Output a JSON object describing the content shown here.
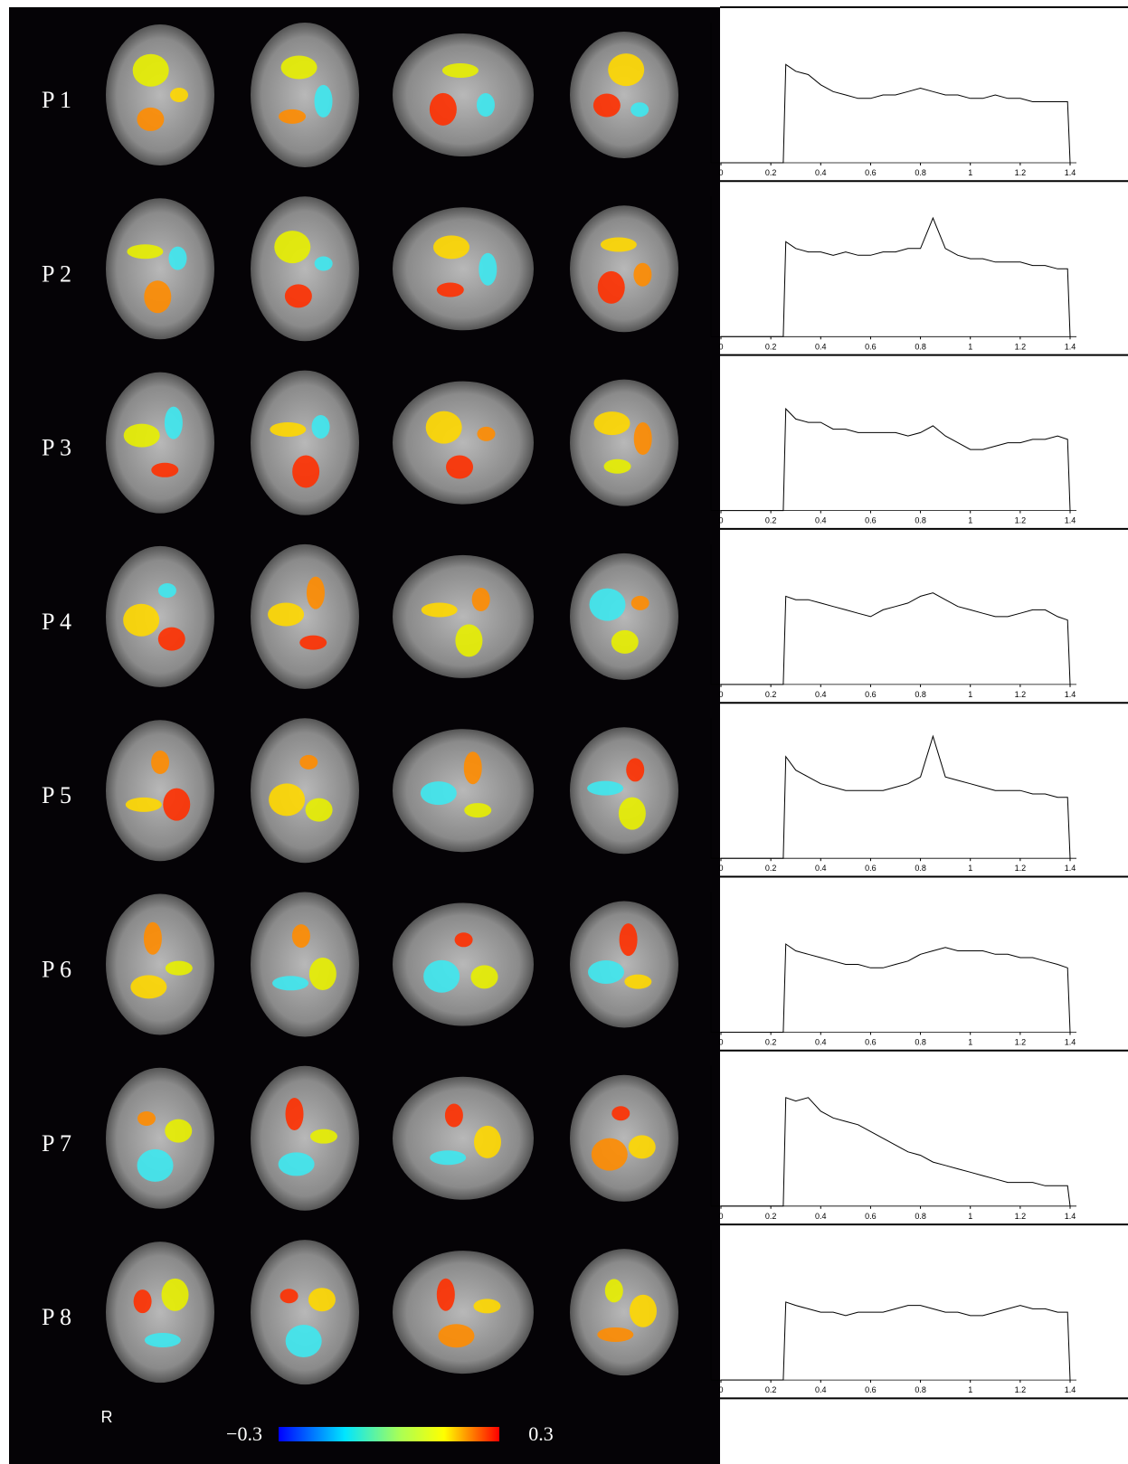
{
  "rows": [
    {
      "label": "P 1",
      "spectrum": [
        0,
        0,
        2.9,
        2.7,
        2.6,
        2.3,
        2.1,
        2.0,
        1.9,
        1.9,
        2.0,
        2.0,
        2.1,
        2.2,
        2.1,
        2.0,
        2.0,
        1.9,
        1.9,
        2.0,
        1.9,
        1.9,
        1.8,
        1.8,
        1.8,
        1.8,
        0
      ]
    },
    {
      "label": "P 2",
      "spectrum": [
        0,
        0,
        2.8,
        2.6,
        2.5,
        2.5,
        2.4,
        2.5,
        2.4,
        2.4,
        2.5,
        2.5,
        2.6,
        2.6,
        3.5,
        2.6,
        2.4,
        2.3,
        2.3,
        2.2,
        2.2,
        2.2,
        2.1,
        2.1,
        2.0,
        2.0,
        0
      ]
    },
    {
      "label": "P 3",
      "spectrum": [
        0,
        0,
        3.0,
        2.7,
        2.6,
        2.6,
        2.4,
        2.4,
        2.3,
        2.3,
        2.3,
        2.3,
        2.2,
        2.3,
        2.5,
        2.2,
        2.0,
        1.8,
        1.8,
        1.9,
        2.0,
        2.0,
        2.1,
        2.1,
        2.2,
        2.1,
        0
      ]
    },
    {
      "label": "P 4",
      "spectrum": [
        0,
        0,
        2.6,
        2.5,
        2.5,
        2.4,
        2.3,
        2.2,
        2.1,
        2.0,
        2.2,
        2.3,
        2.4,
        2.6,
        2.7,
        2.5,
        2.3,
        2.2,
        2.1,
        2.0,
        2.0,
        2.1,
        2.2,
        2.2,
        2.0,
        1.9,
        0
      ]
    },
    {
      "label": "P 5",
      "spectrum": [
        0,
        0,
        3.0,
        2.6,
        2.4,
        2.2,
        2.1,
        2.0,
        2.0,
        2.0,
        2.0,
        2.1,
        2.2,
        2.4,
        3.6,
        2.4,
        2.3,
        2.2,
        2.1,
        2.0,
        2.0,
        2.0,
        1.9,
        1.9,
        1.8,
        1.8,
        0
      ]
    },
    {
      "label": "P 6",
      "spectrum": [
        0,
        0,
        2.6,
        2.4,
        2.3,
        2.2,
        2.1,
        2.0,
        2.0,
        1.9,
        1.9,
        2.0,
        2.1,
        2.3,
        2.4,
        2.5,
        2.4,
        2.4,
        2.4,
        2.3,
        2.3,
        2.2,
        2.2,
        2.1,
        2.0,
        1.9,
        0
      ]
    },
    {
      "label": "P 7",
      "spectrum": [
        0,
        0,
        3.2,
        3.1,
        3.2,
        2.8,
        2.6,
        2.5,
        2.4,
        2.2,
        2.0,
        1.8,
        1.6,
        1.5,
        1.3,
        1.2,
        1.1,
        1.0,
        0.9,
        0.8,
        0.7,
        0.7,
        0.7,
        0.6,
        0.6,
        0.6,
        0
      ]
    },
    {
      "label": "P 8",
      "spectrum": [
        0,
        0,
        2.3,
        2.2,
        2.1,
        2.0,
        2.0,
        1.9,
        2.0,
        2.0,
        2.0,
        2.1,
        2.2,
        2.2,
        2.1,
        2.0,
        2.0,
        1.9,
        1.9,
        2.0,
        2.1,
        2.2,
        2.1,
        2.1,
        2.0,
        2.0,
        0
      ]
    }
  ],
  "spectrum_axis": {
    "x": [
      0,
      0.25,
      0.26,
      0.3,
      0.35,
      0.4,
      0.45,
      0.5,
      0.55,
      0.6,
      0.65,
      0.7,
      0.75,
      0.8,
      0.85,
      0.9,
      0.95,
      1,
      1.05,
      1.1,
      1.15,
      1.2,
      1.25,
      1.3,
      1.35,
      1.39,
      1.4
    ],
    "xlim": [
      0,
      1.4
    ],
    "xticks": [
      0,
      0.2,
      0.4,
      0.6,
      0.8,
      1,
      1.2,
      1.4
    ],
    "ylim": [
      0,
      4
    ]
  },
  "orientation_label": "R",
  "colorbar": {
    "ticks": [
      {
        "value": -0.3,
        "label": "−0.3"
      },
      0.3
    ]
  }
}
